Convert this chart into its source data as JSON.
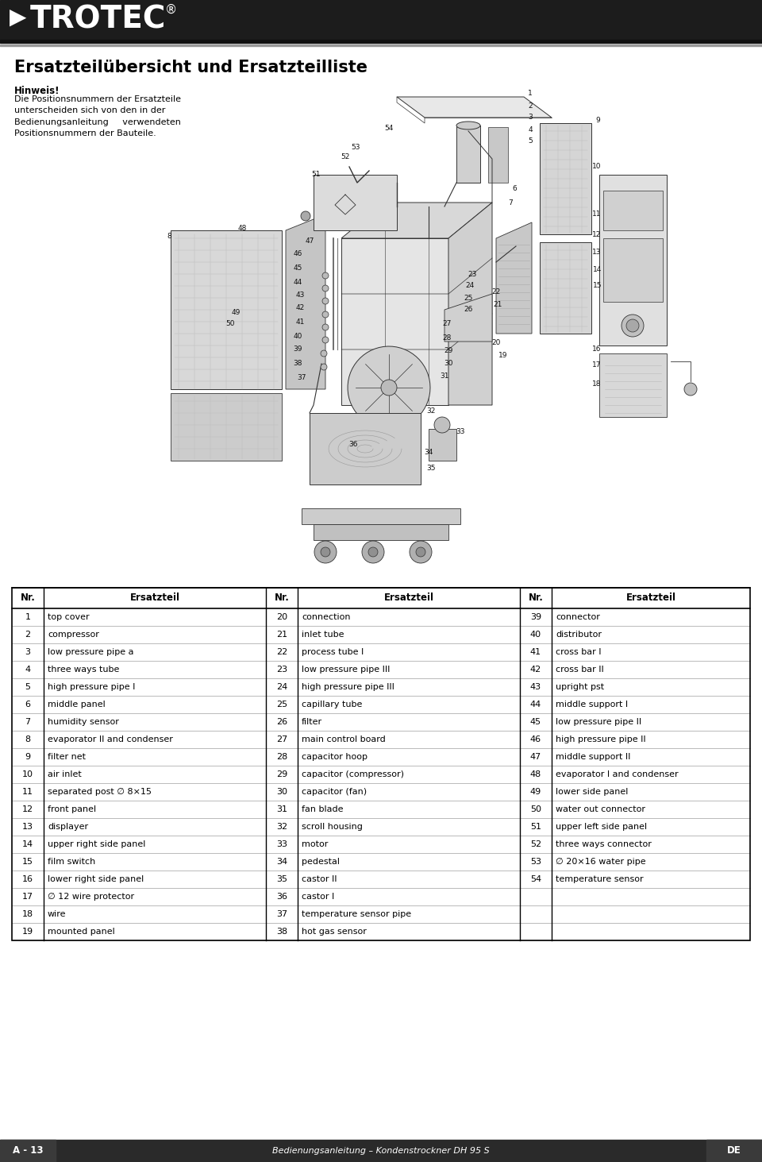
{
  "title": "Ersatzteilübersicht und Ersatzteilliste",
  "hint_bold": "Hinweis!",
  "hint_text": "Die Positionsnummern der Ersatzteile\nunterscheiden sich von den in der\nBedienungsanleitung     verwendeten\nPositionsnummern der Bauteile.",
  "col1": [
    [
      "1",
      "top cover"
    ],
    [
      "2",
      "compressor"
    ],
    [
      "3",
      "low pressure pipe a"
    ],
    [
      "4",
      "three ways tube"
    ],
    [
      "5",
      "high pressure pipe I"
    ],
    [
      "6",
      "middle panel"
    ],
    [
      "7",
      "humidity sensor"
    ],
    [
      "8",
      "evaporator II and condenser"
    ],
    [
      "9",
      "filter net"
    ],
    [
      "10",
      "air inlet"
    ],
    [
      "11",
      "separated post ∅ 8×15"
    ],
    [
      "12",
      "front panel"
    ],
    [
      "13",
      "displayer"
    ],
    [
      "14",
      "upper right side panel"
    ],
    [
      "15",
      "film switch"
    ],
    [
      "16",
      "lower right side panel"
    ],
    [
      "17",
      "∅ 12 wire protector"
    ],
    [
      "18",
      "wire"
    ],
    [
      "19",
      "mounted panel"
    ]
  ],
  "col2": [
    [
      "20",
      "connection"
    ],
    [
      "21",
      "inlet tube"
    ],
    [
      "22",
      "process tube I"
    ],
    [
      "23",
      "low pressure pipe III"
    ],
    [
      "24",
      "high pressure pipe III"
    ],
    [
      "25",
      "capillary tube"
    ],
    [
      "26",
      "filter"
    ],
    [
      "27",
      "main control board"
    ],
    [
      "28",
      "capacitor hoop"
    ],
    [
      "29",
      "capacitor (compressor)"
    ],
    [
      "30",
      "capacitor (fan)"
    ],
    [
      "31",
      "fan blade"
    ],
    [
      "32",
      "scroll housing"
    ],
    [
      "33",
      "motor"
    ],
    [
      "34",
      "pedestal"
    ],
    [
      "35",
      "castor II"
    ],
    [
      "36",
      "castor I"
    ],
    [
      "37",
      "temperature sensor pipe"
    ],
    [
      "38",
      "hot gas sensor"
    ]
  ],
  "col3": [
    [
      "39",
      "connector"
    ],
    [
      "40",
      "distributor"
    ],
    [
      "41",
      "cross bar I"
    ],
    [
      "42",
      "cross bar II"
    ],
    [
      "43",
      "upright pst"
    ],
    [
      "44",
      "middle support I"
    ],
    [
      "45",
      "low pressure pipe II"
    ],
    [
      "46",
      "high pressure pipe II"
    ],
    [
      "47",
      "middle support II"
    ],
    [
      "48",
      "evaporator I and condenser"
    ],
    [
      "49",
      "lower side panel"
    ],
    [
      "50",
      "water out connector"
    ],
    [
      "51",
      "upper left side panel"
    ],
    [
      "52",
      "three ways connector"
    ],
    [
      "53",
      "∅ 20×16 water pipe"
    ],
    [
      "54",
      "temperature sensor"
    ],
    [
      "",
      ""
    ],
    [
      "",
      ""
    ],
    [
      "",
      ""
    ]
  ],
  "footer_left": "A - 13",
  "footer_center": "Bedienungsanleitung – Kondenstrockner DH 95 S",
  "footer_right": "DE",
  "bg_color": "#ffffff",
  "header_bg": "#1c1c1c",
  "footer_bg": "#2a2a2a"
}
